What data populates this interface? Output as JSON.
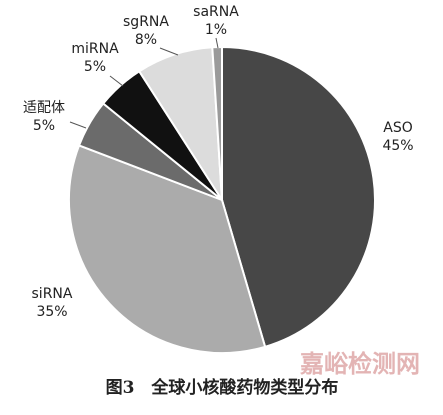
{
  "chart_data": {
    "type": "pie",
    "title": "图3　全球小核酸药物类型分布",
    "watermark": "嘉峪检测网",
    "categories": [
      "ASO",
      "siRNA",
      "适配体",
      "miRNA",
      "sgRNA",
      "saRNA"
    ],
    "values": [
      45,
      35,
      5,
      5,
      8,
      1
    ],
    "value_labels": [
      "45%",
      "35%",
      "5%",
      "5%",
      "8%",
      "1%"
    ],
    "colors": [
      "#474747",
      "#ababab",
      "#6b6b6b",
      "#111111",
      "#dcdcdc",
      "#9a9a9a"
    ]
  }
}
